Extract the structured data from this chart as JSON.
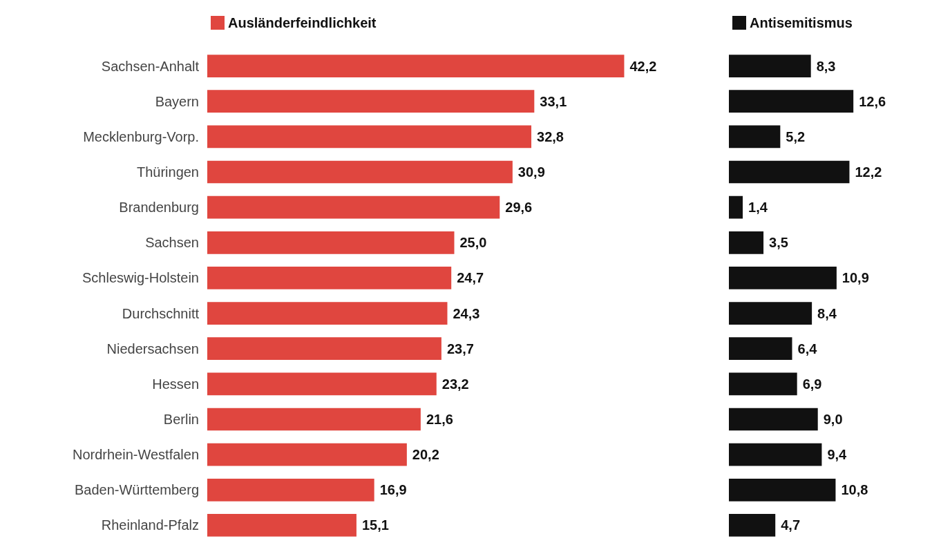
{
  "chart_data": [
    {
      "type": "bar",
      "orientation": "horizontal",
      "categories": [
        "Sachsen-Anhalt",
        "Bayern",
        "Mecklenburg-Vorp.",
        "Thüringen",
        "Brandenburg",
        "Sachsen",
        "Schleswig-Holstein",
        "Durchschnitt",
        "Niedersachsen",
        "Hessen",
        "Berlin",
        "Nordrhein-Westfalen",
        "Baden-Württemberg",
        "Rheinland-Pfalz"
      ],
      "series": [
        {
          "name": "Ausländerfeindlichkeit",
          "color": "#e0463f",
          "values": [
            42.2,
            33.1,
            32.8,
            30.9,
            29.6,
            25.0,
            24.7,
            24.3,
            23.7,
            23.2,
            21.6,
            20.2,
            16.9,
            15.1
          ],
          "value_labels": [
            "42,2",
            "33,1",
            "32,8",
            "30,9",
            "29,6",
            "25,0",
            "24,7",
            "24,3",
            "23,7",
            "23,2",
            "21,6",
            "20,2",
            "16,9",
            "15,1"
          ]
        }
      ],
      "legend": "top left",
      "tick_labels": "y",
      "grid": false
    },
    {
      "type": "bar",
      "orientation": "horizontal",
      "categories": [
        null,
        null,
        null,
        null,
        null,
        null,
        null,
        null,
        null,
        null,
        null,
        null,
        null,
        null
      ],
      "series": [
        {
          "name": "Antisemitismus",
          "color": "#111111",
          "values": [
            8.3,
            12.6,
            5.2,
            12.2,
            1.4,
            3.5,
            10.9,
            8.4,
            6.4,
            6.9,
            9.0,
            9.4,
            10.8,
            4.7
          ],
          "value_labels": [
            "8,3",
            "12,6",
            "5,2",
            "12,2",
            "1,4",
            "3,5",
            "10,9",
            "8,4",
            "6,4",
            "6,9",
            "9,0",
            "9,4",
            "10,8",
            "4,7"
          ]
        }
      ],
      "legend": "top left",
      "tick_labels": false,
      "grid": false
    }
  ]
}
